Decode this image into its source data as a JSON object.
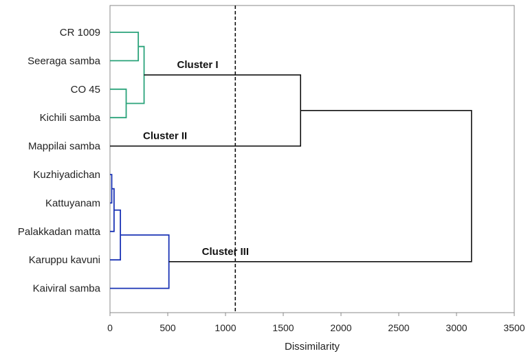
{
  "chart_data": {
    "type": "dendrogram",
    "xlabel": "Dissimilarity",
    "xlim": [
      0,
      3500
    ],
    "xticks": [
      0,
      500,
      1000,
      1500,
      2000,
      2500,
      3000,
      3500
    ],
    "grid": false,
    "cut_line": 1085,
    "leaves": [
      "CR 1009",
      "Seeraga samba",
      "CO 45",
      "Kichili samba",
      "Mappilai samba",
      "Kuzhiyadichan",
      "Kattuyanam",
      "Palakkadan matta",
      "Karuppu kavuni",
      "Kaiviral samba"
    ],
    "merges": [
      {
        "id": "A",
        "left": 0,
        "right": 1,
        "height": 245,
        "cluster": "I"
      },
      {
        "id": "B",
        "left": 2,
        "right": 3,
        "height": 140,
        "cluster": "I"
      },
      {
        "id": "C",
        "left": "A",
        "right": "B",
        "height": 295,
        "cluster": "I"
      },
      {
        "id": "D",
        "left": "C",
        "right": 4,
        "height": 1650,
        "cluster": "root"
      },
      {
        "id": "E",
        "left": 5,
        "right": 6,
        "height": 15,
        "cluster": "III"
      },
      {
        "id": "F",
        "left": "E",
        "right": 7,
        "height": 35,
        "cluster": "III"
      },
      {
        "id": "G",
        "left": "F",
        "right": 8,
        "height": 90,
        "cluster": "III"
      },
      {
        "id": "H",
        "left": "G",
        "right": 9,
        "height": 510,
        "cluster": "III"
      },
      {
        "id": "I",
        "left": "D",
        "right": "H",
        "height": 3130,
        "cluster": "root"
      }
    ],
    "cluster_labels": [
      {
        "text": "Cluster I",
        "near": "C"
      },
      {
        "text": "Cluster II",
        "near": 4
      },
      {
        "text": "Cluster III",
        "near": "H"
      }
    ],
    "colors": {
      "I": "#2aa37a",
      "III": "#1a33b5",
      "root": "#111111",
      "cut_line": "#111111",
      "axis": "#888888"
    }
  }
}
